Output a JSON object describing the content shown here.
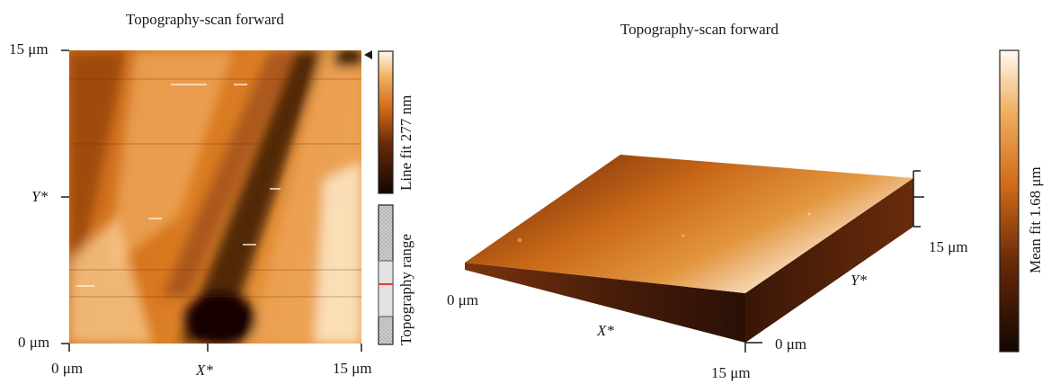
{
  "left_panel": {
    "title": "Topography-scan forward",
    "y_top_label": "15 μm",
    "y_mid_label": "Y*",
    "y_bottom_label": "0 μm",
    "x_left_label": "0 μm",
    "x_mid_label": "X*",
    "x_right_label": "15 μm",
    "colorbar_label": "Line fit 277 nm",
    "range_label": "Topography range"
  },
  "right_panel": {
    "title": "Topography-scan forward",
    "x_origin_label": "0 μm",
    "x_axis_label": "X*",
    "x_end_label": "15 μm",
    "y_origin_label": "0 μm",
    "y_axis_label": "Y*",
    "y_end_label": "15 μm",
    "colorbar_label": "Mean fit 1.68 μm"
  },
  "colors": {
    "dark": "#1a0a03",
    "mid": "#c35a10",
    "light": "#fff8ec"
  }
}
